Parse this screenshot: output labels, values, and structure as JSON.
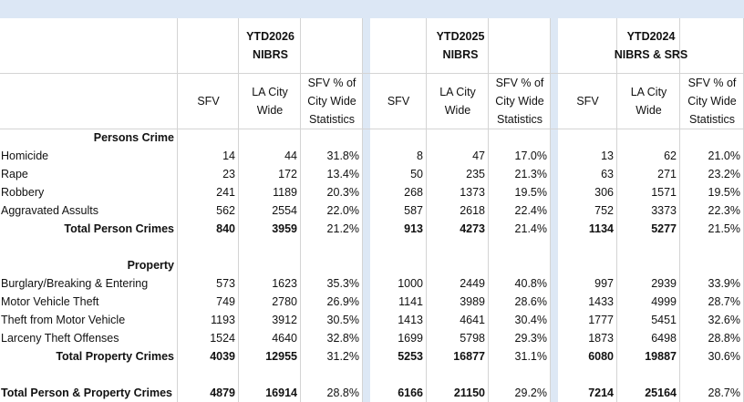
{
  "header": {
    "groups": [
      [
        "YTD2026",
        "NIBRS"
      ],
      [
        "YTD2025",
        "NIBRS"
      ],
      [
        "YTD2024",
        "NIBRS & SRS"
      ]
    ],
    "columns": [
      "SFV",
      "LA City Wide",
      "SFV % of City Wide Statistics"
    ]
  },
  "sections": [
    {
      "heading": "Persons Crime",
      "rows": [
        {
          "label": "Homicide",
          "values": [
            "14",
            "44",
            "31.8%",
            "8",
            "47",
            "17.0%",
            "13",
            "62",
            "21.0%"
          ]
        },
        {
          "label": "Rape",
          "values": [
            "23",
            "172",
            "13.4%",
            "50",
            "235",
            "21.3%",
            "63",
            "271",
            "23.2%"
          ]
        },
        {
          "label": "Robbery",
          "values": [
            "241",
            "1189",
            "20.3%",
            "268",
            "1373",
            "19.5%",
            "306",
            "1571",
            "19.5%"
          ]
        },
        {
          "label": "Aggravated Assults",
          "values": [
            "562",
            "2554",
            "22.0%",
            "587",
            "2618",
            "22.4%",
            "752",
            "3373",
            "22.3%"
          ]
        }
      ],
      "total": {
        "label": "Total Person Crimes",
        "values": [
          "840",
          "3959",
          "21.2%",
          "913",
          "4273",
          "21.4%",
          "1134",
          "5277",
          "21.5%"
        ]
      }
    },
    {
      "heading": "Property",
      "rows": [
        {
          "label": "Burglary/Breaking & Entering",
          "values": [
            "573",
            "1623",
            "35.3%",
            "1000",
            "2449",
            "40.8%",
            "997",
            "2939",
            "33.9%"
          ]
        },
        {
          "label": "Motor Vehicle Theft",
          "values": [
            "749",
            "2780",
            "26.9%",
            "1141",
            "3989",
            "28.6%",
            "1433",
            "4999",
            "28.7%"
          ]
        },
        {
          "label": "Theft from Motor Vehicle",
          "values": [
            "1193",
            "3912",
            "30.5%",
            "1413",
            "4641",
            "30.4%",
            "1777",
            "5451",
            "32.6%"
          ]
        },
        {
          "label": "Larceny Theft Offenses",
          "values": [
            "1524",
            "4640",
            "32.8%",
            "1699",
            "5798",
            "29.3%",
            "1873",
            "6498",
            "28.8%"
          ]
        }
      ],
      "total": {
        "label": "Total Property Crimes",
        "values": [
          "4039",
          "12955",
          "31.2%",
          "5253",
          "16877",
          "31.1%",
          "6080",
          "19887",
          "30.6%"
        ]
      }
    }
  ],
  "grand_total": {
    "label": "Total Person & Property Crimes",
    "values": [
      "4879",
      "16914",
      "28.8%",
      "6166",
      "21150",
      "29.2%",
      "7214",
      "25164",
      "28.7%"
    ]
  }
}
